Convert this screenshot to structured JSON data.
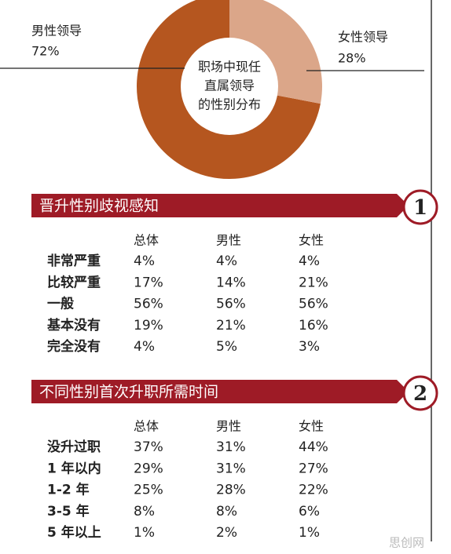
{
  "chart_data": {
    "type": "pie",
    "title_lines": [
      "职场中现任",
      "直属领导",
      "的性别分布"
    ],
    "categories": [
      "男性领导",
      "女性领导"
    ],
    "values": [
      72,
      28
    ],
    "value_labels": [
      "72%",
      "28%"
    ],
    "colors": [
      "#b5561f",
      "#dba689"
    ]
  },
  "sections": [
    {
      "number": "1",
      "title": "晋升性别歧视感知",
      "table": {
        "header": [
          "总体",
          "男性",
          "女性"
        ],
        "rows": [
          [
            "非常严重",
            "4%",
            "4%",
            "4%"
          ],
          [
            "比较严重",
            "17%",
            "14%",
            "21%"
          ],
          [
            "一般",
            "56%",
            "56%",
            "56%"
          ],
          [
            "基本没有",
            "19%",
            "21%",
            "16%"
          ],
          [
            "完全没有",
            "4%",
            "5%",
            "3%"
          ]
        ]
      }
    },
    {
      "number": "2",
      "title": "不同性别首次升职所需时间",
      "table": {
        "header": [
          "总体",
          "男性",
          "女性"
        ],
        "rows": [
          [
            "没升过职",
            "37%",
            "31%",
            "44%"
          ],
          [
            "1 年以内",
            "29%",
            "31%",
            "27%"
          ],
          [
            "1-2 年",
            "25%",
            "28%",
            "22%"
          ],
          [
            "3-5 年",
            "8%",
            "8%",
            "6%"
          ],
          [
            "5 年以上",
            "1%",
            "2%",
            "1%"
          ]
        ]
      }
    }
  ],
  "watermark": "思创网"
}
